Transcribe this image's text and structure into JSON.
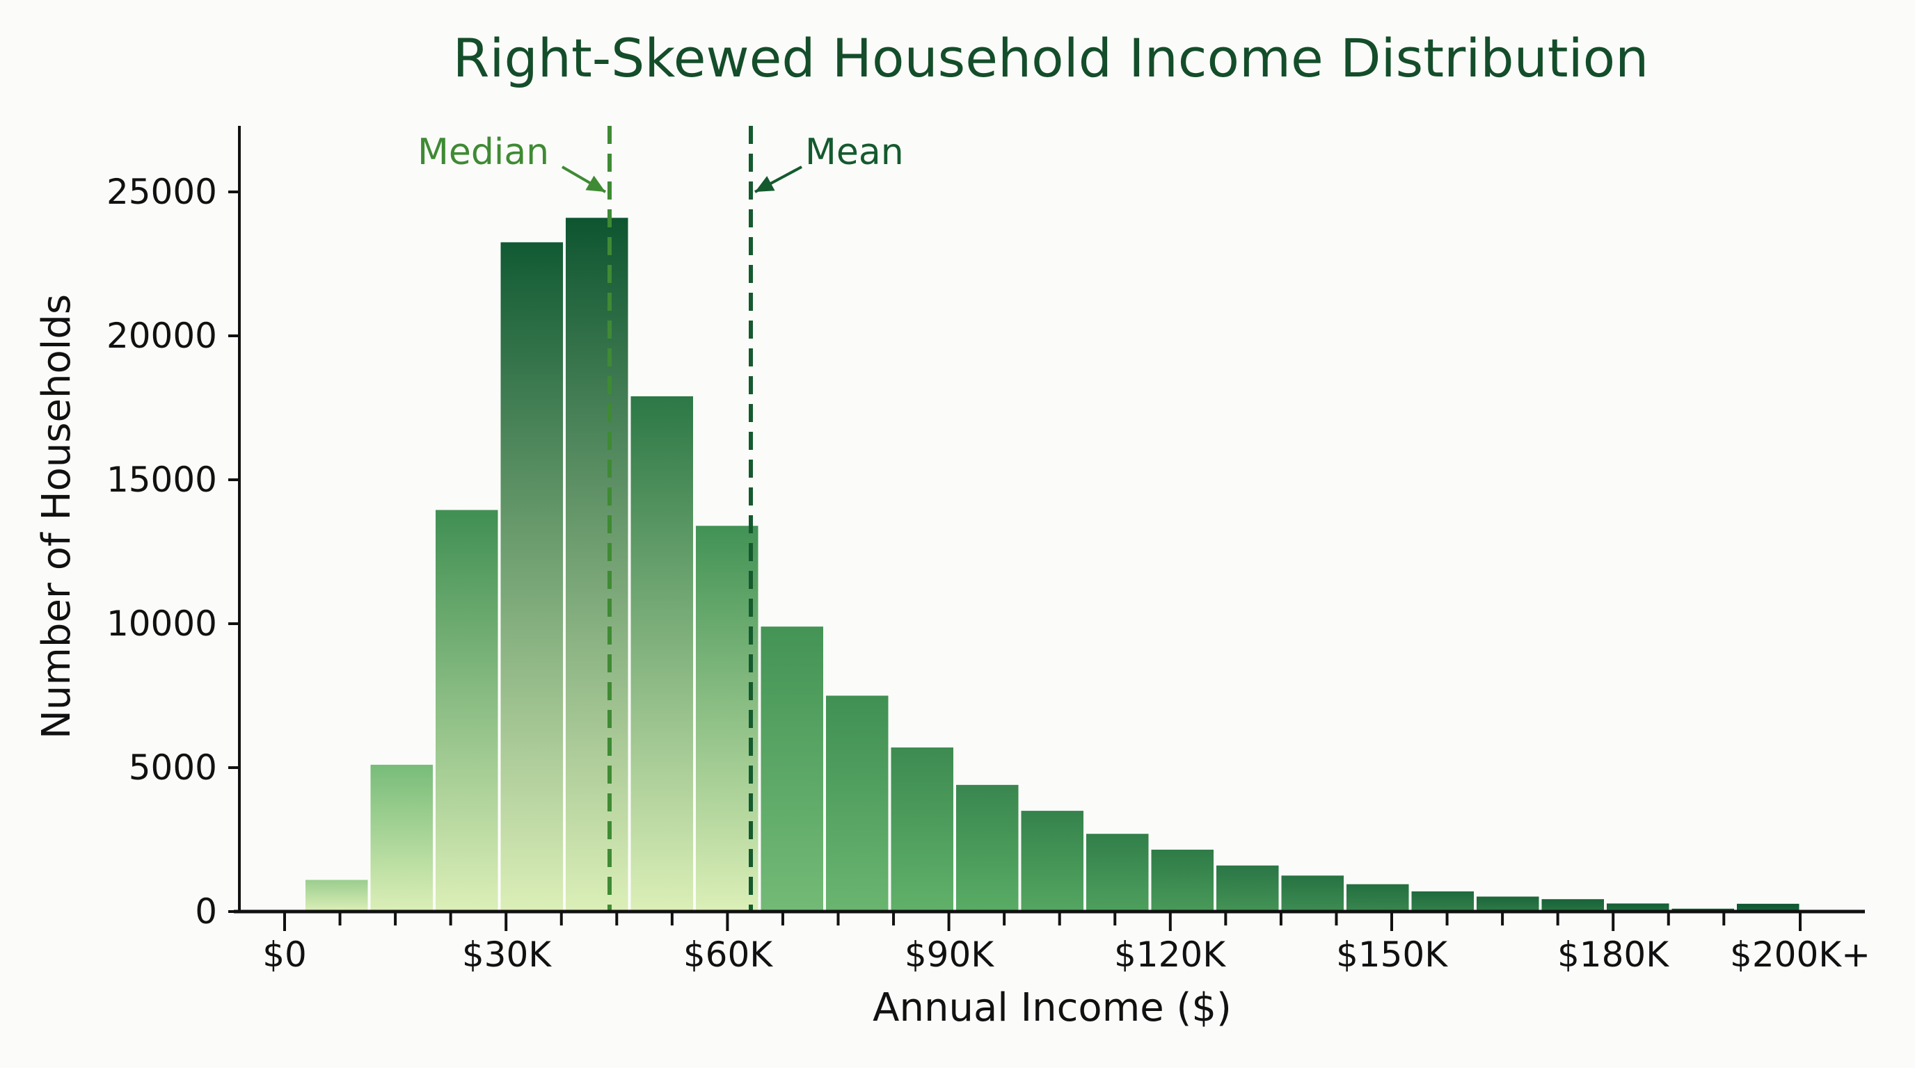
{
  "chart_data": {
    "type": "bar",
    "subtype": "histogram",
    "title": "Right-Skewed Household Income Distribution",
    "xlabel": "Annual Income ($)",
    "ylabel": "Number of Households",
    "ylim": [
      0,
      27000
    ],
    "yticks": [
      0,
      5000,
      10000,
      15000,
      20000,
      25000
    ],
    "xticks": [
      {
        "label": "$0",
        "value": 0
      },
      {
        "label": "$30K",
        "value": 30000
      },
      {
        "label": "$60K",
        "value": 60000
      },
      {
        "label": "$90K",
        "value": 90000
      },
      {
        "label": "$120K",
        "value": 120000
      },
      {
        "label": "$150K",
        "value": 150000
      },
      {
        "label": "$180K",
        "value": 180000
      },
      {
        "label": "$200K+",
        "value": 205000
      }
    ],
    "grid": false,
    "legend": null,
    "bin_width": 8750,
    "bins": [
      {
        "bin_index": 0,
        "value": 1100
      },
      {
        "bin_index": 1,
        "value": 5100
      },
      {
        "bin_index": 2,
        "value": 13950
      },
      {
        "bin_index": 3,
        "value": 23250
      },
      {
        "bin_index": 4,
        "value": 24100
      },
      {
        "bin_index": 5,
        "value": 17900
      },
      {
        "bin_index": 6,
        "value": 13400
      },
      {
        "bin_index": 7,
        "value": 9900
      },
      {
        "bin_index": 8,
        "value": 7500
      },
      {
        "bin_index": 9,
        "value": 5700
      },
      {
        "bin_index": 10,
        "value": 4400
      },
      {
        "bin_index": 11,
        "value": 3500
      },
      {
        "bin_index": 12,
        "value": 2700
      },
      {
        "bin_index": 13,
        "value": 2150
      },
      {
        "bin_index": 14,
        "value": 1600
      },
      {
        "bin_index": 15,
        "value": 1250
      },
      {
        "bin_index": 16,
        "value": 950
      },
      {
        "bin_index": 17,
        "value": 700
      },
      {
        "bin_index": 18,
        "value": 520
      },
      {
        "bin_index": 19,
        "value": 430
      },
      {
        "bin_index": 20,
        "value": 280
      },
      {
        "bin_index": 21,
        "value": 100
      },
      {
        "bin_index": 22,
        "value": 270
      }
    ],
    "values": [
      1100,
      5100,
      13950,
      23250,
      24100,
      17900,
      13400,
      9900,
      7500,
      5700,
      4400,
      3500,
      2700,
      2150,
      1600,
      1250,
      950,
      700,
      520,
      430,
      280,
      100,
      270
    ],
    "annotations": [
      {
        "label": "Median",
        "x_approx": 43000,
        "style": "dashed",
        "color": "#3f8a34"
      },
      {
        "label": "Mean",
        "x_approx": 63500,
        "style": "dashed",
        "color": "#145a2e"
      }
    ]
  },
  "colors": {
    "title": "#144d2a",
    "median": "#3f8a34",
    "mean": "#145a2e",
    "bar_light": "#dcefb8",
    "bar_mid": "#5aad66",
    "bar_dark": "#0d5530",
    "axis": "#111111",
    "background": "#fbfcf9"
  }
}
